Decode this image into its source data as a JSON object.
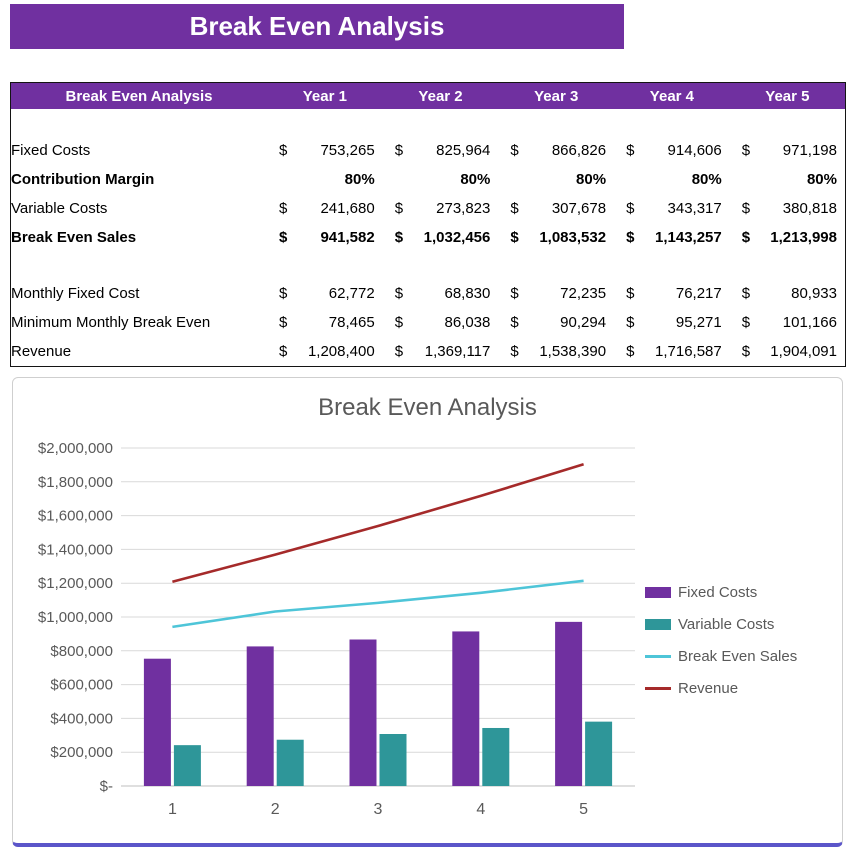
{
  "banner": {
    "title": "Break Even Analysis"
  },
  "table": {
    "currency_symbol": "$",
    "header": [
      "Break Even Analysis",
      "Year 1",
      "Year 2",
      "Year 3",
      "Year 4",
      "Year 5"
    ],
    "rows": [
      {
        "label": "",
        "spacer": true,
        "bold": false,
        "dollar": false,
        "values": [
          "",
          "",
          "",
          "",
          ""
        ]
      },
      {
        "label": "Fixed Costs",
        "spacer": false,
        "bold": false,
        "dollar": true,
        "values": [
          "753,265",
          "825,964",
          "866,826",
          "914,606",
          "971,198"
        ]
      },
      {
        "label": "Contribution Margin",
        "spacer": false,
        "bold": true,
        "dollar": false,
        "values": [
          "80%",
          "80%",
          "80%",
          "80%",
          "80%"
        ]
      },
      {
        "label": "Variable Costs",
        "spacer": false,
        "bold": false,
        "dollar": true,
        "values": [
          "241,680",
          "273,823",
          "307,678",
          "343,317",
          "380,818"
        ]
      },
      {
        "label": "Break Even Sales",
        "spacer": false,
        "bold": true,
        "dollar": true,
        "values": [
          "941,582",
          "1,032,456",
          "1,083,532",
          "1,143,257",
          "1,213,998"
        ]
      },
      {
        "label": "",
        "spacer": true,
        "bold": false,
        "dollar": false,
        "values": [
          "",
          "",
          "",
          "",
          ""
        ]
      },
      {
        "label": "Monthly Fixed Cost",
        "spacer": false,
        "bold": false,
        "dollar": true,
        "values": [
          "62,772",
          "68,830",
          "72,235",
          "76,217",
          "80,933"
        ]
      },
      {
        "label": "Minimum Monthly Break Even",
        "spacer": false,
        "bold": false,
        "dollar": true,
        "values": [
          "78,465",
          "86,038",
          "90,294",
          "95,271",
          "101,166"
        ]
      },
      {
        "label": "Revenue",
        "spacer": false,
        "bold": false,
        "dollar": true,
        "values": [
          "1,208,400",
          "1,369,117",
          "1,538,390",
          "1,716,587",
          "1,904,091"
        ]
      }
    ]
  },
  "chart_data": {
    "type": "combo",
    "title": "Break Even Analysis",
    "categories": [
      "1",
      "2",
      "3",
      "4",
      "5"
    ],
    "series": [
      {
        "name": "Fixed Costs",
        "type": "bar",
        "color": "#7030A0",
        "values": [
          753265,
          825964,
          866826,
          914606,
          971198
        ]
      },
      {
        "name": "Variable Costs",
        "type": "bar",
        "color": "#2E9699",
        "values": [
          241680,
          273823,
          307678,
          343317,
          380818
        ]
      },
      {
        "name": "Break Even Sales",
        "type": "line",
        "color": "#4EC5D8",
        "values": [
          941582,
          1032456,
          1083532,
          1143257,
          1213998
        ]
      },
      {
        "name": "Revenue",
        "type": "line",
        "color": "#A52A2A",
        "values": [
          1208400,
          1369117,
          1538390,
          1716587,
          1904091
        ]
      }
    ],
    "ylim": [
      0,
      2000000
    ],
    "y_tick_values": [
      0,
      200000,
      400000,
      600000,
      800000,
      1000000,
      1200000,
      1400000,
      1600000,
      1800000,
      2000000
    ],
    "y_tick_labels": [
      "$-",
      "$200,000",
      "$400,000",
      "$600,000",
      "$800,000",
      "$1,000,000",
      "$1,200,000",
      "$1,400,000",
      "$1,600,000",
      "$1,800,000",
      "$2,000,000"
    ],
    "grid": true,
    "legend_position": "right",
    "axis_color": "#595959"
  }
}
